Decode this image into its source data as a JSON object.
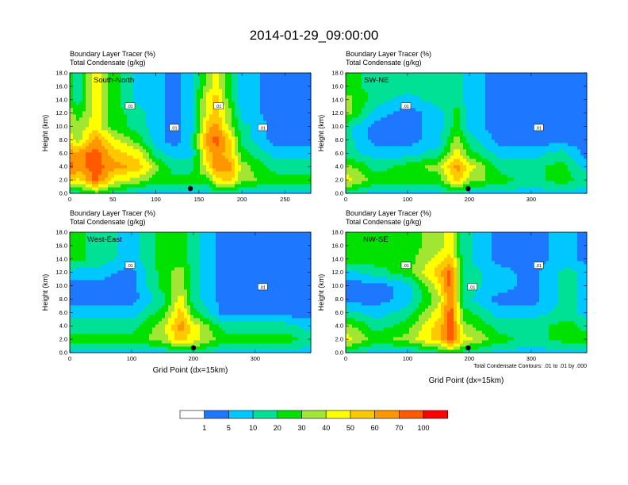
{
  "title": "2014-01-29_09:00:00",
  "header_line1": "Boundary Layer Tracer   (%)",
  "header_line2": "Total Condensate   (g/kg)",
  "x_axis_label": "Grid Point (dx=15km)",
  "contour_note": "Total Condensate Contours: .01 to .01 by .000",
  "colorbar": {
    "labels": [
      "1",
      "5",
      "10",
      "20",
      "30",
      "40",
      "50",
      "60",
      "70",
      "100"
    ],
    "colors": [
      "#ffffff",
      "#1e78ff",
      "#00c8ff",
      "#00e196",
      "#00e100",
      "#a0e632",
      "#ffff00",
      "#ffc800",
      "#ff9600",
      "#ff5a00",
      "#ff0000"
    ]
  },
  "chart_data": [
    {
      "type": "heatmap",
      "panel": "South-North",
      "title": "South-North",
      "ylabel": "Height (km)",
      "xlim": [
        0,
        280
      ],
      "ylim": [
        0,
        18
      ],
      "xticks": [
        0,
        50,
        100,
        150,
        200,
        250
      ],
      "yticks": [
        "0.0",
        "2.0",
        "4.0",
        "6.0",
        "8.0",
        "10.0",
        "12.0",
        "14.0",
        "16.0",
        "18.0"
      ],
      "contour_labels": [
        ".01",
        ".01",
        ".01",
        ".01"
      ],
      "marker_x": 140,
      "profile": [
        [
          0,
          3,
          7,
          9,
          8,
          6,
          5,
          5,
          4,
          4
        ],
        [
          10,
          3,
          6,
          8,
          8,
          5,
          5,
          4,
          3,
          3
        ],
        [
          30,
          4,
          9,
          9,
          9,
          8,
          6,
          6,
          6,
          6
        ],
        [
          50,
          3,
          6,
          8,
          7,
          6,
          4,
          4,
          4,
          4
        ],
        [
          80,
          2,
          5,
          7,
          6,
          4,
          3,
          3,
          2,
          2
        ],
        [
          100,
          2,
          4,
          5,
          3,
          2,
          2,
          2,
          2,
          2
        ],
        [
          120,
          2,
          4,
          3,
          2,
          1,
          1,
          1,
          1,
          1
        ],
        [
          140,
          2,
          4,
          3,
          2,
          2,
          2,
          2,
          2,
          2
        ],
        [
          160,
          2,
          4,
          6,
          7,
          8,
          7,
          6,
          6,
          5
        ],
        [
          170,
          3,
          6,
          8,
          8,
          9,
          8,
          7,
          7,
          6
        ],
        [
          185,
          3,
          7,
          8,
          7,
          7,
          5,
          5,
          4,
          4
        ],
        [
          200,
          2,
          5,
          5,
          4,
          3,
          3,
          2,
          2,
          2
        ],
        [
          240,
          2,
          4,
          3,
          2,
          1,
          1,
          1,
          1,
          1
        ],
        [
          280,
          2,
          4,
          3,
          2,
          1,
          1,
          1,
          1,
          1
        ]
      ]
    },
    {
      "type": "heatmap",
      "panel": "SW-NE",
      "title": "SW-NE",
      "ylabel": "Height (km)",
      "xlim": [
        0,
        390
      ],
      "ylim": [
        0,
        18
      ],
      "xticks": [
        0,
        100,
        200,
        300
      ],
      "yticks": [
        "0.0",
        "2.0",
        "4.0",
        "6.0",
        "8.0",
        "10.0",
        "12.0",
        "14.0",
        "16.0",
        "18.0"
      ],
      "contour_labels": [
        ".01",
        ".01"
      ],
      "marker_x": 198,
      "profile": [
        [
          0,
          3,
          6,
          5,
          3,
          3,
          3,
          5,
          5,
          4
        ],
        [
          50,
          2,
          4,
          3,
          2,
          1,
          1,
          2,
          3,
          3
        ],
        [
          100,
          2,
          4,
          4,
          2,
          1,
          1,
          1,
          2,
          3
        ],
        [
          150,
          2,
          4,
          5,
          3,
          2,
          2,
          2,
          3,
          3
        ],
        [
          180,
          3,
          7,
          8,
          6,
          5,
          4,
          4,
          3,
          3
        ],
        [
          200,
          2,
          5,
          6,
          4,
          3,
          2,
          2,
          2,
          2
        ],
        [
          250,
          2,
          4,
          3,
          2,
          1,
          1,
          1,
          1,
          1
        ],
        [
          300,
          2,
          3,
          3,
          2,
          1,
          1,
          1,
          1,
          1
        ],
        [
          350,
          2,
          4,
          4,
          3,
          1,
          1,
          1,
          1,
          1
        ],
        [
          390,
          2,
          3,
          2,
          1,
          1,
          1,
          1,
          1,
          1
        ]
      ]
    },
    {
      "type": "heatmap",
      "panel": "West-East",
      "title": "West-East",
      "ylabel": "Height (km)",
      "xlim": [
        0,
        390
      ],
      "ylim": [
        0,
        18
      ],
      "xticks": [
        0,
        100,
        200,
        300
      ],
      "yticks": [
        "0.0",
        "2.0",
        "4.0",
        "6.0",
        "8.0",
        "10.0",
        "12.0",
        "14.0",
        "16.0",
        "18.0"
      ],
      "contour_labels": [
        ".01",
        ".01"
      ],
      "marker_x": 200,
      "profile": [
        [
          0,
          2,
          4,
          3,
          2,
          1,
          1,
          2,
          4,
          4
        ],
        [
          50,
          2,
          4,
          3,
          2,
          1,
          1,
          2,
          3,
          3
        ],
        [
          100,
          2,
          4,
          3,
          2,
          1,
          1,
          1,
          2,
          2
        ],
        [
          150,
          2,
          5,
          5,
          4,
          3,
          4,
          4,
          4,
          4
        ],
        [
          180,
          3,
          7,
          8,
          7,
          6,
          5,
          5,
          4,
          4
        ],
        [
          200,
          3,
          6,
          6,
          4,
          3,
          3,
          3,
          3,
          3
        ],
        [
          250,
          2,
          4,
          3,
          1,
          1,
          1,
          1,
          1,
          1
        ],
        [
          300,
          2,
          4,
          3,
          1,
          1,
          1,
          1,
          1,
          1
        ],
        [
          350,
          2,
          4,
          3,
          1,
          1,
          1,
          1,
          1,
          1
        ],
        [
          390,
          2,
          3,
          2,
          1,
          1,
          1,
          1,
          1,
          1
        ]
      ]
    },
    {
      "type": "heatmap",
      "panel": "NW-SE",
      "title": "NW-SE",
      "ylabel": "Height (km)",
      "xlim": [
        0,
        390
      ],
      "ylim": [
        0,
        18
      ],
      "xticks": [
        0,
        100,
        200,
        300
      ],
      "yticks": [
        "0.0",
        "2.0",
        "4.0",
        "6.0",
        "8.0",
        "10.0",
        "12.0",
        "14.0",
        "16.0",
        "18.0"
      ],
      "contour_labels": [
        ".01",
        ".01",
        ".01"
      ],
      "marker_x": 198,
      "profile": [
        [
          0,
          3,
          6,
          5,
          3,
          1,
          1,
          2,
          4,
          4
        ],
        [
          50,
          2,
          4,
          3,
          2,
          1,
          1,
          3,
          4,
          4
        ],
        [
          100,
          2,
          5,
          4,
          3,
          2,
          2,
          4,
          4,
          4
        ],
        [
          150,
          3,
          7,
          7,
          6,
          5,
          6,
          7,
          6,
          5
        ],
        [
          170,
          4,
          9,
          9,
          9,
          9,
          9,
          9,
          7,
          6
        ],
        [
          190,
          3,
          6,
          5,
          4,
          3,
          3,
          3,
          3,
          3
        ],
        [
          250,
          2,
          4,
          3,
          2,
          1,
          2,
          2,
          1,
          1
        ],
        [
          300,
          2,
          3,
          3,
          2,
          1,
          1,
          1,
          1,
          1
        ],
        [
          360,
          2,
          4,
          4,
          3,
          3,
          3,
          3,
          2,
          2
        ],
        [
          390,
          2,
          4,
          3,
          2,
          2,
          2,
          2,
          1,
          1
        ]
      ]
    }
  ]
}
